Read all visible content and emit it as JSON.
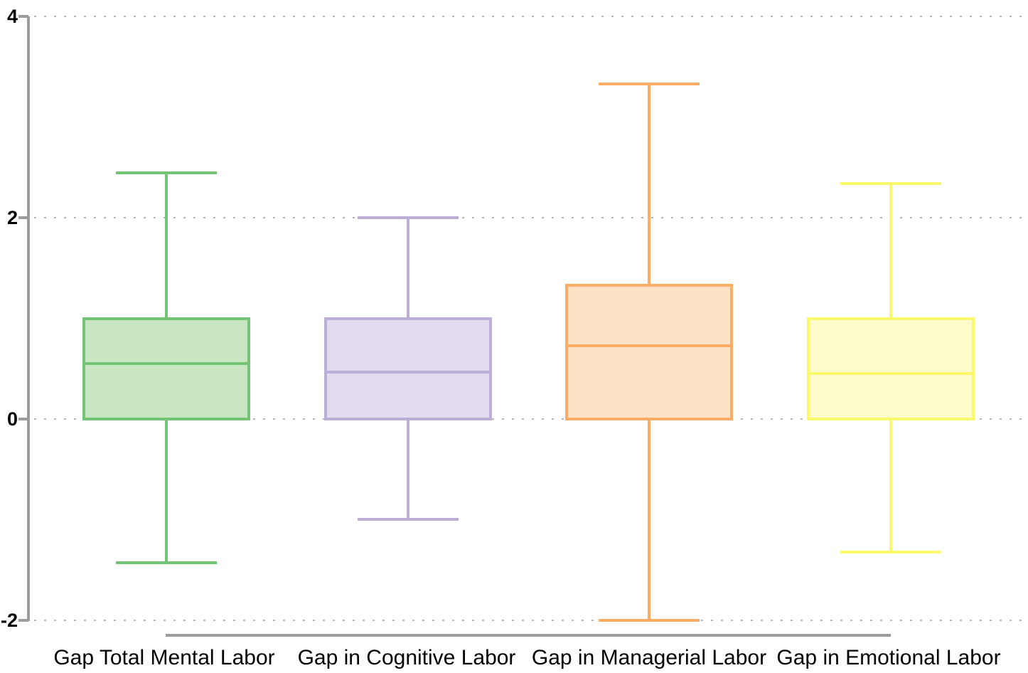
{
  "chart_data": {
    "type": "boxplot",
    "title": "",
    "xlabel": "",
    "ylabel": "",
    "ylim": [
      -2,
      4
    ],
    "grid": "dotted horizontal lines at y ticks",
    "legend": "none",
    "yticks": [
      4,
      2,
      0,
      -2
    ],
    "ytick_labels": [
      "4",
      "2",
      "0",
      "-2"
    ],
    "categories": [
      "Gap Total Mental Labor",
      "Gap in Cognitive Labor",
      "Gap in Managerial Labor",
      "Gap in Emotional Labor"
    ],
    "series": [
      {
        "name": "Gap Total Mental Labor",
        "whisker_low": -1.43,
        "q1": 0.0,
        "median": 0.55,
        "q3": 1.0,
        "whisker_high": 2.45,
        "stroke": "#74c476",
        "fill": "#c9e6c2"
      },
      {
        "name": "Gap in Cognitive Labor",
        "whisker_low": -1.0,
        "q1": 0.0,
        "median": 0.47,
        "q3": 1.0,
        "whisker_high": 2.0,
        "stroke": "#bcaed6",
        "fill": "#e3dcee"
      },
      {
        "name": "Gap in Managerial Labor",
        "whisker_low": -2.0,
        "q1": 0.0,
        "median": 0.73,
        "q3": 1.33,
        "whisker_high": 3.33,
        "stroke": "#fbad66",
        "fill": "#fde2c6"
      },
      {
        "name": "Gap in Emotional Labor",
        "whisker_low": -1.32,
        "q1": 0.0,
        "median": 0.45,
        "q3": 1.0,
        "whisker_high": 2.34,
        "stroke": "#f9f96b",
        "fill": "#fcfcca"
      }
    ],
    "colors": {
      "axis": "#9c9c9c",
      "grid": "#b5b5b5",
      "text": "#000000",
      "background": "#ffffff"
    }
  }
}
